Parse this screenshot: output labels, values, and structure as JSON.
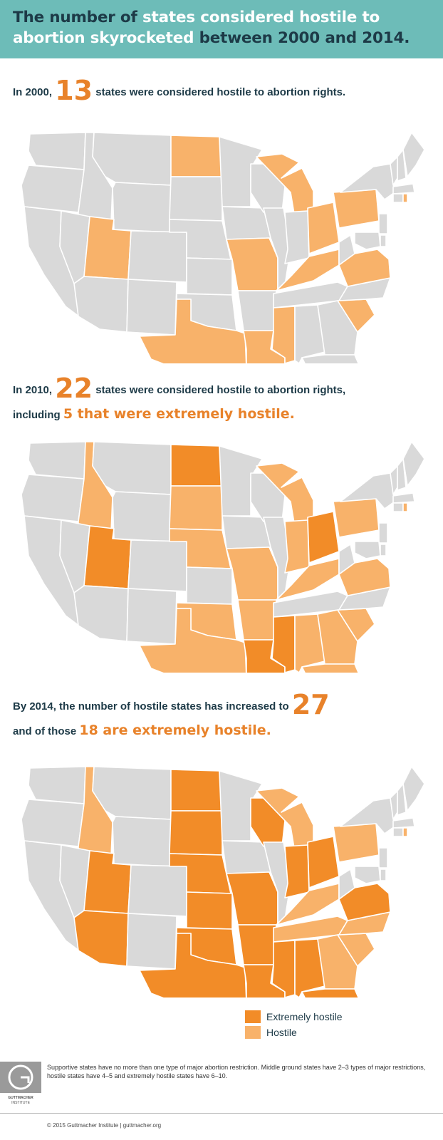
{
  "header": {
    "title_part1_dark": "The number of",
    "title_part2_white": "states considered hostile to abortion skyrocketed",
    "title_part3_dark": "between 2000 and 2014."
  },
  "section2000": {
    "prefix": "In 2000,",
    "number": "13",
    "suffix": "states were considered hostile to abortion rights."
  },
  "section2010": {
    "prefix": "In 2010,",
    "number": "22",
    "suffix": "states were considered hostile to abortion rights,",
    "line2_prefix": "including",
    "line2_highlight": "5 that were extremely hostile."
  },
  "section2014": {
    "prefix": "By 2014, the number of hostile states has increased to",
    "number": "27",
    "line2_prefix": "and of those",
    "line2_highlight": "18 are extremely hostile."
  },
  "legend": {
    "extremely_label": "Extremely hostile",
    "hostile_label": "Hostile"
  },
  "footnote": "Supportive states have no more than one type of major abortion restriction. Middle ground states have 2–3 types of major restrictions, hostile states have 4–5 and extremely hostile states have 6–10.",
  "logo_text": "GUTTMACHER INSTITUTE",
  "copyright": "© 2015 Guttmacher Institute  |  guttmacher.org",
  "colors": {
    "extremely_hostile": "#f28c28",
    "hostile": "#f8b26a",
    "other": "#d9d9d9",
    "header_bg": "#6dbcb8",
    "title_dark": "#1d3a47",
    "accent_orange": "#e8822a"
  },
  "maps": [
    {
      "year": "2000",
      "extremely": [],
      "hostile": [
        "ND",
        "UT",
        "MI",
        "PA",
        "OH",
        "MO",
        "KY",
        "VA",
        "TX",
        "LA",
        "MS",
        "SC",
        "RI"
      ]
    },
    {
      "year": "2010",
      "extremely": [
        "ND",
        "UT",
        "OH",
        "LA",
        "MS"
      ],
      "hostile": [
        "ID",
        "SD",
        "NE",
        "MI",
        "PA",
        "IN",
        "MO",
        "KY",
        "VA",
        "OK",
        "AR",
        "AL",
        "GA",
        "SC",
        "TX",
        "FL",
        "RI"
      ]
    },
    {
      "year": "2014",
      "extremely": [
        "ND",
        "SD",
        "NE",
        "KS",
        "OK",
        "TX",
        "MO",
        "AR",
        "LA",
        "MS",
        "AL",
        "UT",
        "AZ",
        "WI",
        "IN",
        "OH",
        "VA",
        "FL"
      ],
      "hostile": [
        "ID",
        "MI",
        "PA",
        "KY",
        "TN",
        "NC",
        "SC",
        "GA",
        "RI"
      ]
    }
  ]
}
